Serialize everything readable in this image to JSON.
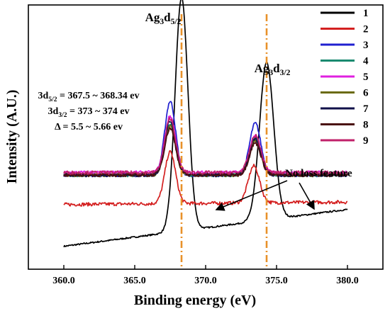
{
  "chart_data": {
    "type": "line",
    "xlabel": "Binding energy (eV)",
    "ylabel": "Intensity (A.U.)",
    "xlim": [
      357.5,
      382.5
    ],
    "x_ticks": [
      360.0,
      365.0,
      370.0,
      375.0,
      380.0
    ],
    "x_tick_labels": [
      "360.0",
      "365.0",
      "370.0",
      "375.0",
      "380.0"
    ],
    "y_ticks_shown": false,
    "legend_position": "top-right",
    "peak_labels": [
      {
        "base": "Ag",
        "sub1": "3",
        "mid": "d",
        "sub2": "5/2",
        "x": 368.3
      },
      {
        "base": "Ag",
        "sub1": "3",
        "mid": "d",
        "sub2": "3/2",
        "x": 374.3
      }
    ],
    "guide_lines": [
      368.3,
      374.3
    ],
    "guide_color": "#e8912a",
    "info_lines": [
      {
        "pre": "3d",
        "sub": "5/2",
        "post": " = 367.5 ~ 368.34 ev"
      },
      {
        "pre": "3d",
        "sub": "3/2",
        "post": " = 373 ~ 374 ev"
      },
      {
        "pre": "Δ = 5.5 ~ 5.66 ev",
        "sub": "",
        "post": ""
      }
    ],
    "annotation": "No loss feature",
    "series": [
      {
        "name": "1",
        "color": "#000000",
        "baseline": 0.05,
        "baseline_right": 0.2,
        "peaks": [
          [
            368.3,
            1.0,
            0.45
          ],
          [
            374.3,
            0.69,
            0.5
          ]
        ]
      },
      {
        "name": "2",
        "color": "#d42020",
        "baseline": 0.22,
        "baseline_right": 0.23,
        "peaks": [
          [
            367.5,
            0.43,
            0.38
          ],
          [
            373.4,
            0.37,
            0.4
          ]
        ]
      },
      {
        "name": "3",
        "color": "#2020d0",
        "baseline": 0.34,
        "baseline_right": 0.34,
        "peaks": [
          [
            367.5,
            0.64,
            0.38
          ],
          [
            373.5,
            0.55,
            0.4
          ]
        ]
      },
      {
        "name": "4",
        "color": "#1a8a70",
        "baseline": 0.34,
        "baseline_right": 0.34,
        "peaks": [
          [
            367.5,
            0.55,
            0.38
          ],
          [
            373.5,
            0.49,
            0.4
          ]
        ]
      },
      {
        "name": "5",
        "color": "#e020e0",
        "baseline": 0.35,
        "baseline_right": 0.35,
        "peaks": [
          [
            367.5,
            0.58,
            0.38
          ],
          [
            373.5,
            0.5,
            0.4
          ]
        ]
      },
      {
        "name": "6",
        "color": "#6b6b10",
        "baseline": 0.34,
        "baseline_right": 0.34,
        "peaks": [
          [
            367.5,
            0.54,
            0.38
          ],
          [
            373.5,
            0.48,
            0.4
          ]
        ]
      },
      {
        "name": "7",
        "color": "#10104a",
        "baseline": 0.34,
        "baseline_right": 0.34,
        "peaks": [
          [
            367.5,
            0.56,
            0.38
          ],
          [
            373.5,
            0.49,
            0.4
          ]
        ]
      },
      {
        "name": "8",
        "color": "#4a1010",
        "baseline": 0.34,
        "baseline_right": 0.34,
        "peaks": [
          [
            367.5,
            0.53,
            0.38
          ],
          [
            373.5,
            0.47,
            0.4
          ]
        ]
      },
      {
        "name": "9",
        "color": "#c0206a",
        "baseline": 0.35,
        "baseline_right": 0.35,
        "peaks": [
          [
            367.5,
            0.57,
            0.38
          ],
          [
            373.5,
            0.5,
            0.4
          ]
        ]
      }
    ]
  }
}
